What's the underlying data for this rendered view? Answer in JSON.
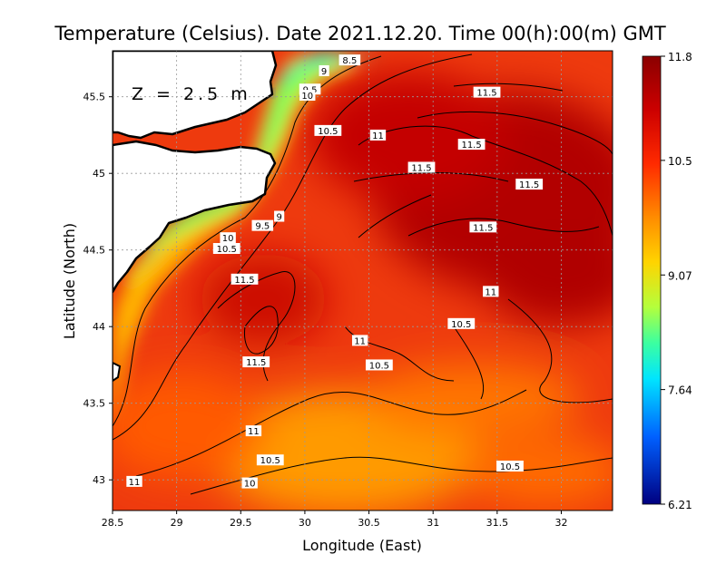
{
  "title": "Temperature (Celsius). Date 2021.12.20. Time 00(h):00(m)  GMT",
  "xlabel": "Longitude (East)",
  "ylabel": "Latitude (North)",
  "depth_label": "Z = 2.5 m",
  "x_ticks": [
    "28.5",
    "29",
    "29.5",
    "30",
    "30.5",
    "31",
    "31.5",
    "32"
  ],
  "y_ticks": [
    "43",
    "43.5",
    "44",
    "44.5",
    "45",
    "45.5"
  ],
  "colorbar": {
    "min": 6.21,
    "max": 11.8,
    "tick_labels": [
      "11.8",
      "10.5",
      "9.07",
      "7.64",
      "6.21"
    ],
    "colors": [
      "#8b0000",
      "#ff2a00",
      "#ffd400",
      "#00e5ff",
      "#000080"
    ]
  },
  "extent": {
    "lon": [
      28.5,
      32.4
    ],
    "lat": [
      42.8,
      45.8
    ]
  },
  "contour_labels": [
    {
      "text": "8.5",
      "lon": 30.35,
      "lat": 45.74
    },
    {
      "text": "9",
      "lon": 30.15,
      "lat": 45.67
    },
    {
      "text": "9.5",
      "lon": 30.04,
      "lat": 45.55
    },
    {
      "text": "10",
      "lon": 30.02,
      "lat": 45.51
    },
    {
      "text": "10.5",
      "lon": 30.18,
      "lat": 45.28
    },
    {
      "text": "11",
      "lon": 30.57,
      "lat": 45.25
    },
    {
      "text": "11.5",
      "lon": 31.42,
      "lat": 45.53
    },
    {
      "text": "11.5",
      "lon": 31.3,
      "lat": 45.19
    },
    {
      "text": "11.5",
      "lon": 30.91,
      "lat": 45.04
    },
    {
      "text": "11.5",
      "lon": 31.75,
      "lat": 44.93
    },
    {
      "text": "9",
      "lon": 29.8,
      "lat": 44.72
    },
    {
      "text": "9.5",
      "lon": 29.67,
      "lat": 44.66
    },
    {
      "text": "10",
      "lon": 29.4,
      "lat": 44.58
    },
    {
      "text": "10.5",
      "lon": 29.39,
      "lat": 44.51
    },
    {
      "text": "11.5",
      "lon": 31.39,
      "lat": 44.65
    },
    {
      "text": "11.5",
      "lon": 29.53,
      "lat": 44.31
    },
    {
      "text": "11",
      "lon": 31.45,
      "lat": 44.23
    },
    {
      "text": "10.5",
      "lon": 31.22,
      "lat": 44.02
    },
    {
      "text": "11",
      "lon": 30.43,
      "lat": 43.91
    },
    {
      "text": "11.5",
      "lon": 29.62,
      "lat": 43.77
    },
    {
      "text": "10.5",
      "lon": 30.58,
      "lat": 43.75
    },
    {
      "text": "11",
      "lon": 29.6,
      "lat": 43.32
    },
    {
      "text": "10.5",
      "lon": 29.73,
      "lat": 43.13
    },
    {
      "text": "10.5",
      "lon": 31.6,
      "lat": 43.09
    },
    {
      "text": "11",
      "lon": 28.67,
      "lat": 42.99
    },
    {
      "text": "10",
      "lon": 29.57,
      "lat": 42.98
    }
  ]
}
